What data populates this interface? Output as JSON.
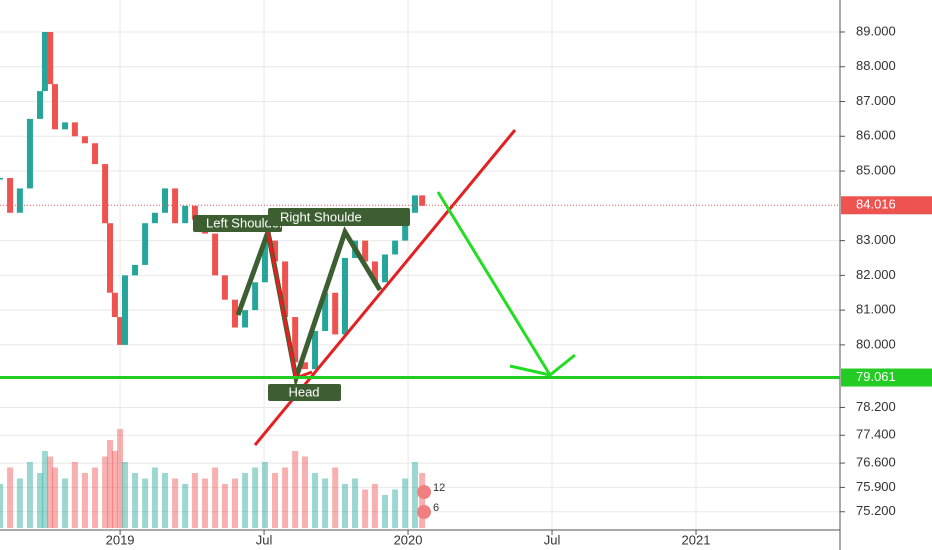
{
  "chart_data": {
    "type": "candles",
    "x": [
      2018.583,
      2018.618,
      2018.652,
      2018.687,
      2018.722,
      2018.739,
      2018.757,
      2018.774,
      2018.809,
      2018.843,
      2018.878,
      2018.913,
      2018.948,
      2018.965,
      2018.982,
      2019.0,
      2019.017,
      2019.052,
      2019.087,
      2019.121,
      2019.156,
      2019.191,
      2019.226,
      2019.26,
      2019.295,
      2019.33,
      2019.364,
      2019.399,
      2019.434,
      2019.469,
      2019.503,
      2019.538,
      2019.573,
      2019.608,
      2019.642,
      2019.677,
      2019.712,
      2019.747,
      2019.781,
      2019.816,
      2019.851,
      2019.885,
      2019.92,
      2019.955,
      2019.99,
      2020.024,
      2020.049
    ],
    "values": [
      84.8,
      83.8,
      84.5,
      86.5,
      87.3,
      89.0,
      87.5,
      86.2,
      86.4,
      86.0,
      85.8,
      85.2,
      83.5,
      81.5,
      80.8,
      80.0,
      82.0,
      82.3,
      83.5,
      83.8,
      84.5,
      83.5,
      84.0,
      83.6,
      83.2,
      82.0,
      81.3,
      80.5,
      81.0,
      81.8,
      83.0,
      82.4,
      80.8,
      79.5,
      79.3,
      80.4,
      81.5,
      80.3,
      82.5,
      83.0,
      82.4,
      81.8,
      82.6,
      83.0,
      83.8,
      84.3,
      84.0
    ],
    "volume": [
      40,
      55,
      45,
      60,
      50,
      70,
      65,
      55,
      45,
      60,
      50,
      55,
      65,
      80,
      70,
      90,
      60,
      50,
      45,
      55,
      50,
      45,
      40,
      50,
      45,
      55,
      40,
      45,
      50,
      55,
      60,
      50,
      55,
      70,
      65,
      50,
      45,
      55,
      40,
      45,
      35,
      40,
      30,
      35,
      45,
      60,
      50
    ],
    "vlim": [
      0,
      100
    ],
    "up_color": "#26a69a",
    "down_color": "#ef5350",
    "xlim": [
      2018.583,
      2021.5
    ],
    "xticks": [
      2019,
      {
        "value": 2019.5,
        "label": "Jul"
      },
      2020,
      {
        "value": 2020.5,
        "label": "Jul"
      },
      2021
    ],
    "ylim": [
      74.1,
      89.92
    ],
    "yticks": [
      {
        "value": 89,
        "label": "89.000"
      },
      {
        "value": 88,
        "label": "88.000"
      },
      {
        "value": 87,
        "label": "87.000"
      },
      {
        "value": 86,
        "label": "86.000"
      },
      {
        "value": 85,
        "label": "85.000"
      },
      {
        "value": 83,
        "label": "83.000"
      },
      {
        "value": 82,
        "label": "82.000"
      },
      {
        "value": 81,
        "label": "81.000"
      },
      {
        "value": 80,
        "label": "80.000"
      },
      {
        "value": 78.2,
        "label": "78.200"
      },
      {
        "value": 77.4,
        "label": "77.400"
      },
      {
        "value": 76.6,
        "label": "76.600"
      },
      {
        "value": 75.9,
        "label": "75.900"
      },
      {
        "value": 75.2,
        "label": "75.200"
      }
    ],
    "grid": true,
    "last_price": 84.016,
    "support": 79.061,
    "annotations": [
      "Left Shoulder",
      "Right Shoulde",
      "Head"
    ],
    "events": [
      "12",
      "6"
    ]
  }
}
